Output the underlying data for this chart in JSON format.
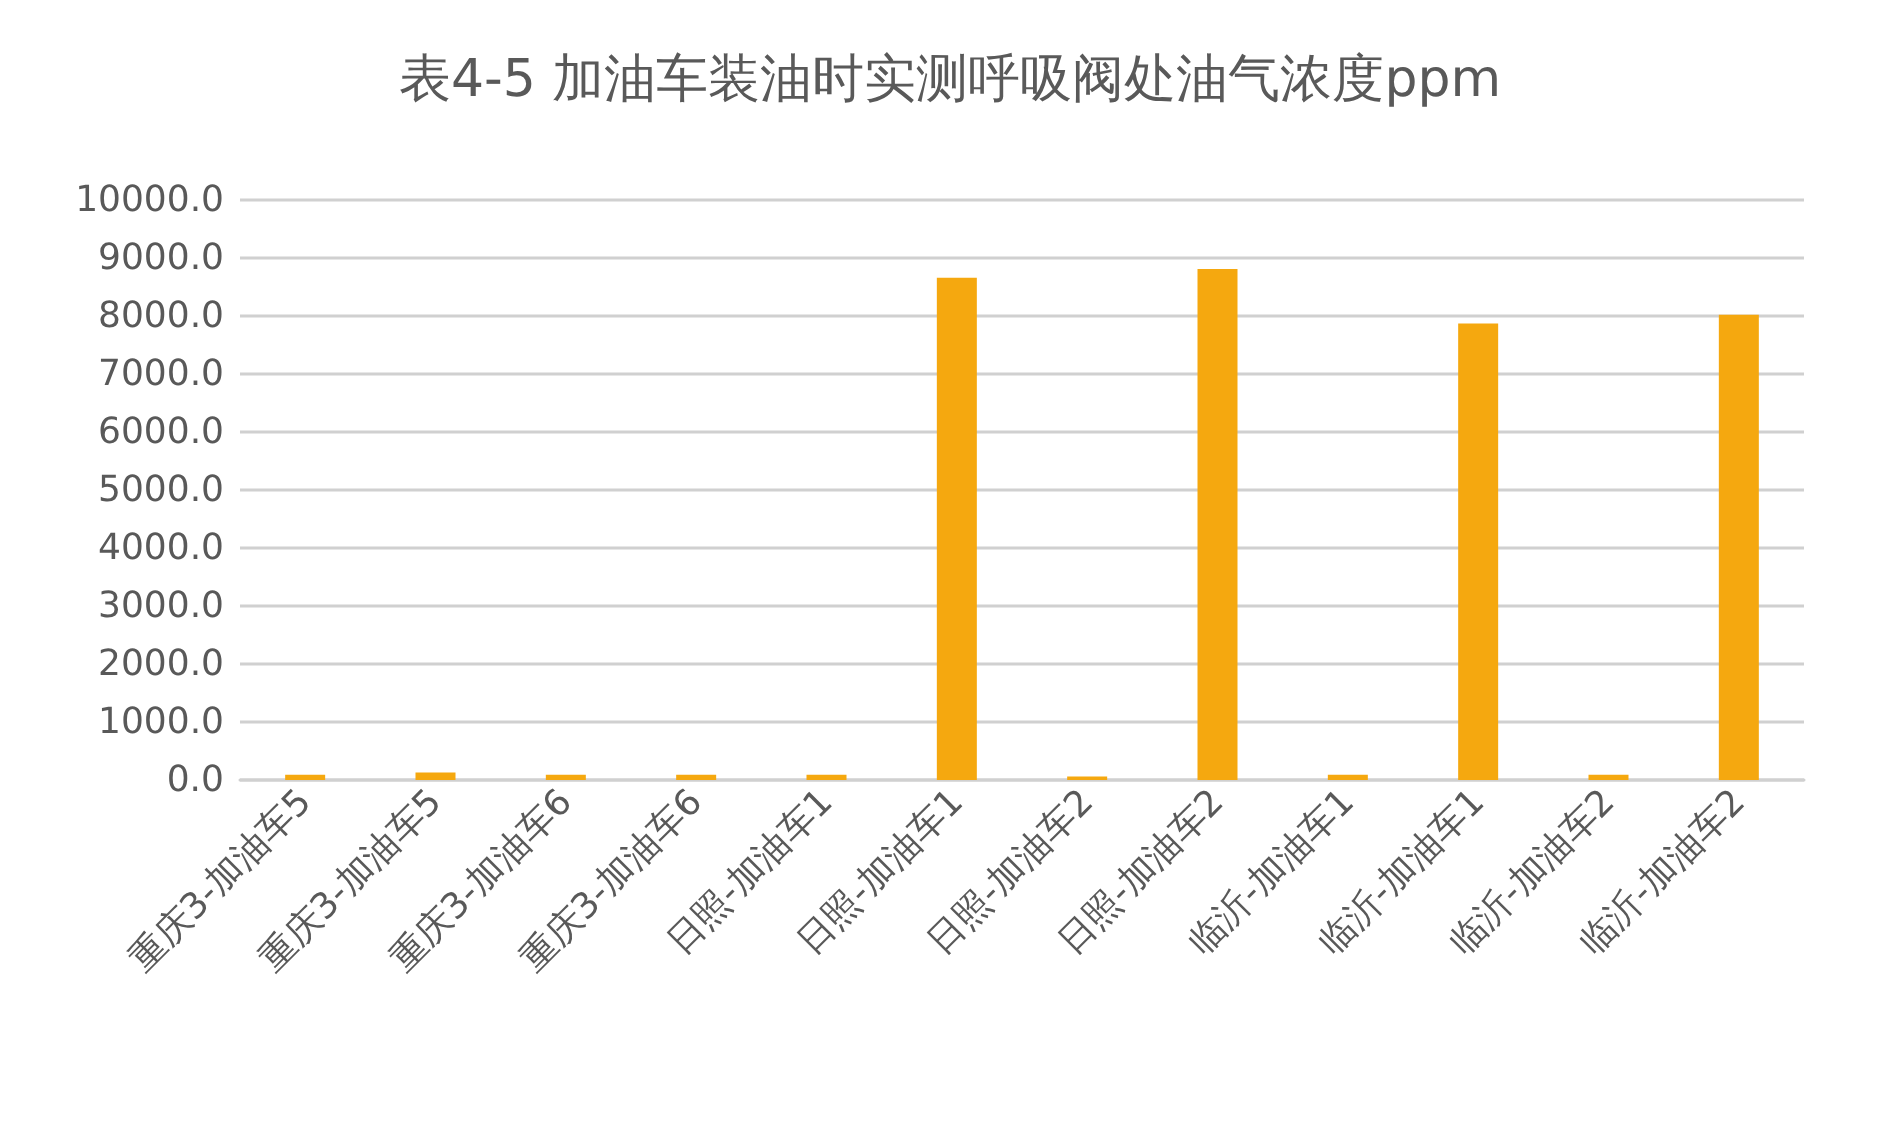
{
  "chart_data": {
    "type": "bar",
    "title": "表4-5 加油车装油时实测呼吸阀处油气浓度ppm",
    "categories": [
      "重庆3-加油车5",
      "重庆3-加油车5",
      "重庆3-加油车6",
      "重庆3-加油车6",
      "日照-加油车1",
      "日照-加油车1",
      "日照-加油车2",
      "日照-加油车2",
      "临沂-加油车1",
      "临沂-加油车1",
      "临沂-加油车2",
      "临沂-加油车2"
    ],
    "values": [
      90,
      130,
      90,
      90,
      90,
      8660,
      60,
      8810,
      90,
      7870,
      90,
      8020
    ],
    "color": "#f5a80f",
    "ylim": [
      0,
      10000
    ],
    "yticks": [
      {
        "value": 0,
        "label": "0.0"
      },
      {
        "value": 1000,
        "label": "1000.0"
      },
      {
        "value": 2000,
        "label": "2000.0"
      },
      {
        "value": 3000,
        "label": "3000.0"
      },
      {
        "value": 4000,
        "label": "4000.0"
      },
      {
        "value": 5000,
        "label": "5000.0"
      },
      {
        "value": 6000,
        "label": "6000.0"
      },
      {
        "value": 7000,
        "label": "7000.0"
      },
      {
        "value": 8000,
        "label": "8000.0"
      },
      {
        "value": 9000,
        "label": "9000.0"
      },
      {
        "value": 10000,
        "label": "10000.0"
      }
    ],
    "grid": "y"
  }
}
